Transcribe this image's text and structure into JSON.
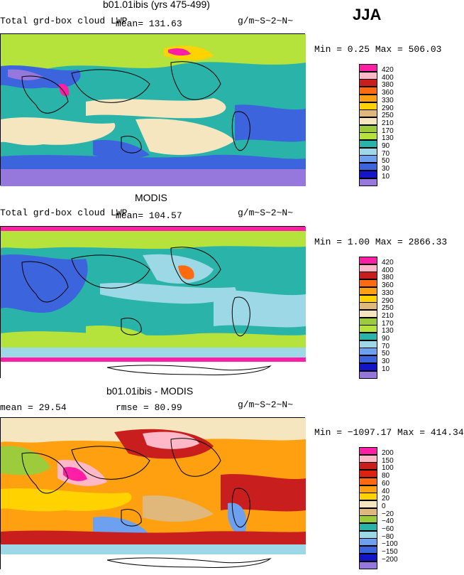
{
  "season": "JJA",
  "panels": [
    {
      "title": "b01.01ibis (yrs 475-499)",
      "left_label": "Total grd-box cloud LWP",
      "mean_text": "mean= 131.63",
      "unit": "g/m~S~2~N~",
      "minmax": "Min =    0.25 Max = 506.03",
      "legend_labels": [
        "420",
        "400",
        "380",
        "360",
        "330",
        "290",
        "250",
        "210",
        "170",
        "130",
        "90",
        "70",
        "50",
        "30",
        "10"
      ],
      "legend_colors": [
        "#ff1fa6",
        "#ffb8c8",
        "#c81e1e",
        "#ff6a10",
        "#ffa010",
        "#ffd200",
        "#e0b87c",
        "#f5e6c0",
        "#9ccc3c",
        "#b6e23c",
        "#2ab3a8",
        "#9cd8e6",
        "#6ea0f0",
        "#3c64dc",
        "#1414c8",
        "#9678dc"
      ]
    },
    {
      "title": "MODIS",
      "left_label": "Total grd-box cloud LWP",
      "mean_text": "mean= 104.57",
      "unit": "g/m~S~2~N~",
      "minmax": "Min =    1.00 Max = 2866.33",
      "legend_labels": [
        "420",
        "400",
        "380",
        "360",
        "330",
        "290",
        "250",
        "210",
        "170",
        "130",
        "90",
        "70",
        "50",
        "30",
        "10"
      ],
      "legend_colors": [
        "#ff1fa6",
        "#ffb8c8",
        "#c81e1e",
        "#ff6a10",
        "#ffa010",
        "#ffd200",
        "#e0b87c",
        "#f5e6c0",
        "#9ccc3c",
        "#b6e23c",
        "#2ab3a8",
        "#9cd8e6",
        "#6ea0f0",
        "#3c64dc",
        "#1414c8",
        "#9678dc"
      ]
    },
    {
      "title": "b01.01ibis - MODIS",
      "left_label": "mean =   29.54",
      "mean_text": "rmse =   80.99",
      "unit": "g/m~S~2~N~",
      "minmax": "Min = −1097.17 Max = 414.34",
      "legend_labels": [
        "200",
        "150",
        "100",
        "80",
        "60",
        "40",
        "20",
        "0",
        "−20",
        "−40",
        "−60",
        "−80",
        "−100",
        "−150",
        "−200"
      ],
      "legend_colors": [
        "#ff1fa6",
        "#ffb8c8",
        "#c81e1e",
        "#e02010",
        "#ff6a10",
        "#ffa010",
        "#ffd200",
        "#f5e6c0",
        "#e0b87c",
        "#9ccc3c",
        "#2ab3a8",
        "#9cd8e6",
        "#6ea0f0",
        "#3c64dc",
        "#1414c8",
        "#9678dc"
      ]
    }
  ],
  "chart_data": [
    {
      "type": "heatmap",
      "title": "b01.01ibis (yrs 475-499)",
      "variable": "Total grd-box cloud LWP",
      "units": "g/m~S~2~N~",
      "season": "JJA",
      "mean": 131.63,
      "min": 0.25,
      "max": 506.03,
      "contour_levels": [
        10,
        30,
        50,
        70,
        90,
        130,
        170,
        210,
        250,
        290,
        330,
        360,
        380,
        400,
        420
      ]
    },
    {
      "type": "heatmap",
      "title": "MODIS",
      "variable": "Total grd-box cloud LWP",
      "units": "g/m~S~2~N~",
      "season": "JJA",
      "mean": 104.57,
      "min": 1.0,
      "max": 2866.33,
      "contour_levels": [
        10,
        30,
        50,
        70,
        90,
        130,
        170,
        210,
        250,
        290,
        330,
        360,
        380,
        400,
        420
      ]
    },
    {
      "type": "heatmap",
      "title": "b01.01ibis - MODIS",
      "units": "g/m~S~2~N~",
      "season": "JJA",
      "mean": 29.54,
      "rmse": 80.99,
      "min": -1097.17,
      "max": 414.34,
      "contour_levels": [
        -200,
        -150,
        -100,
        -80,
        -60,
        -40,
        -20,
        0,
        20,
        40,
        60,
        80,
        100,
        150,
        200
      ]
    }
  ]
}
